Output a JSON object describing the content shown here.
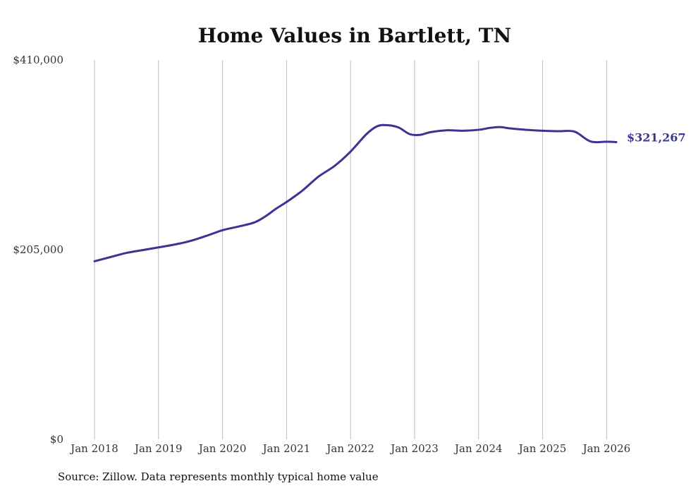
{
  "chart_data": {
    "type": "line",
    "title": "Home Values in Bartlett, TN",
    "xlabel": "",
    "ylabel": "",
    "ylim": [
      0,
      410000
    ],
    "y_ticks": [
      {
        "value": 0,
        "label": "$0"
      },
      {
        "value": 205000,
        "label": "$205,000"
      },
      {
        "value": 410000,
        "label": "$410,000"
      }
    ],
    "x_range": [
      2018.0,
      2026.15
    ],
    "x_ticks": [
      {
        "value": 2018,
        "label": "Jan 2018"
      },
      {
        "value": 2019,
        "label": "Jan 2019"
      },
      {
        "value": 2020,
        "label": "Jan 2020"
      },
      {
        "value": 2021,
        "label": "Jan 2021"
      },
      {
        "value": 2022,
        "label": "Jan 2022"
      },
      {
        "value": 2023,
        "label": "Jan 2023"
      },
      {
        "value": 2024,
        "label": "Jan 2024"
      },
      {
        "value": 2025,
        "label": "Jan 2025"
      },
      {
        "value": 2026,
        "label": "Jan 2026"
      }
    ],
    "grid": "vertical",
    "series": [
      {
        "name": "Typical home value",
        "color": "#3a3494",
        "x": [
          2018.0,
          2018.25,
          2018.5,
          2018.75,
          2019.0,
          2019.25,
          2019.5,
          2019.75,
          2020.0,
          2020.25,
          2020.5,
          2020.67,
          2020.83,
          2021.0,
          2021.25,
          2021.5,
          2021.75,
          2022.0,
          2022.25,
          2022.42,
          2022.58,
          2022.75,
          2022.92,
          2023.08,
          2023.25,
          2023.5,
          2023.75,
          2024.0,
          2024.17,
          2024.33,
          2024.5,
          2024.75,
          2025.0,
          2025.25,
          2025.5,
          2025.75,
          2026.0,
          2026.15
        ],
        "values": [
          192500,
          197000,
          201500,
          204500,
          207500,
          210500,
          214500,
          220000,
          226000,
          230000,
          234500,
          241000,
          249000,
          256500,
          269000,
          284000,
          295500,
          311000,
          330000,
          338500,
          339500,
          337000,
          330000,
          329000,
          332000,
          334000,
          333500,
          334500,
          336500,
          337500,
          336000,
          334500,
          333500,
          333000,
          332500,
          321900,
          321700,
          321267
        ],
        "end_label": "$321,267"
      }
    ]
  },
  "source_note": "Source: Zillow. Data represents monthly typical home value"
}
